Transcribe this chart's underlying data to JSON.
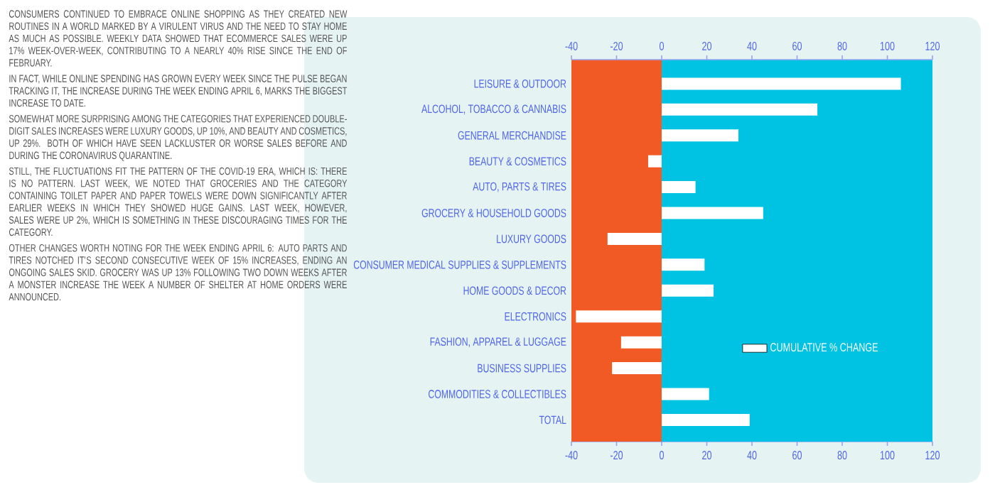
{
  "chart_data": {
    "type": "bar",
    "orientation": "horizontal",
    "categories": [
      "LEISURE & OUTDOOR",
      "ALCOHOL, TOBACCO & CANNABIS",
      "GENERAL MERCHANDISE",
      "BEAUTY & COSMETICS",
      "AUTO, PARTS & TIRES",
      "GROCERY & HOUSEHOLD GOODS",
      "LUXURY GOODS",
      "CONSUMER MEDICAL SUPPLIES & SUPPLEMENTS",
      "HOME GOODS & DECOR",
      "ELECTRONICS",
      "FASHION, APPAREL & LUGGAGE",
      "BUSINESS SUPPLIES",
      "COMMODITIES & COLLECTIBLES",
      "TOTAL"
    ],
    "series": [
      {
        "name": "CUMULATIVE % CHANGE",
        "color": "#ffffff",
        "values": [
          106,
          69,
          34,
          -6,
          15,
          45,
          -24,
          19,
          23,
          -38,
          -18,
          -22,
          21,
          39
        ]
      }
    ],
    "xlim": [
      -40,
      120
    ],
    "xticks": [
      -40,
      -20,
      0,
      20,
      40,
      60,
      80,
      100,
      120
    ],
    "x2lim": [
      -40,
      120
    ],
    "x2ticks": [
      -40,
      -20,
      0,
      20,
      40,
      60,
      80,
      100,
      120
    ],
    "bands": [
      {
        "axis": "x",
        "from": -40,
        "to": 0,
        "color": "#f15a24"
      },
      {
        "axis": "x",
        "from": 0,
        "to": 120,
        "color": "#00c3e3"
      }
    ],
    "legend": "bottom right",
    "annotations": [
      "CONSUMERS CONTINUED TO EMBRACE ONLINE SHOPPING AS THEY CREATED NEW ROUTINES IN A WORLD MARKED BY A VIRULENT VIRUS AND THE NEED TO STAY HOME AS MUCH AS POSSIBLE. WEEKLY DATA SHOWED THAT ECOMMERCE SALES WERE UP 17% WEEK-OVER-WEEK, CONTRIBUTING TO A NEARLY 40% RISE SINCE THE END OF FEBRUARY.",
      "IN FACT, WHILE ONLINE SPENDING HAS GROWN EVERY WEEK SINCE THE PULSE BEGAN TRACKING IT, THE INCREASE DURING THE WEEK ENDING APRIL 6, MARKS THE BIGGEST INCREASE TO DATE.",
      "SOMEWHAT MORE SURPRISING AMONG THE CATEGORIES THAT EXPERIENCED DOUBLE-DIGIT SALES INCREASES WERE LUXURY GOODS, UP 10%, AND BEAUTY AND COSMETICS, UP 29%. BOTH OF WHICH HAVE SEEN LACKLUSTER OR WORSE SALES BEFORE AND DURING THE CORONAVIRUS QUARANTINE.",
      "STILL, THE FLUCTUATIONS FIT THE PATTERN OF THE COVID-19 ERA, WHICH IS: THERE IS NO PATTERN. LAST WEEK, WE NOTED THAT GROCERIES AND THE CATEGORY CONTAINING TOILET PAPER AND PAPER TOWELS WERE DOWN SIGNIFICANTLY AFTER EARLIER WEEKS IN WHICH THEY SHOWED HUGE GAINS. LAST WEEK, HOWEVER, SALES WERE UP 2%, WHICH IS SOMETHING IN THESE DISCOURAGING TIMES FOR THE CATEGORY.",
      "OTHER CHANGES WORTH NOTING FOR THE WEEK ENDING APRIL 6: AUTO PARTS AND TIRES NOTCHED IT'S SECOND CONSECUTIVE WEEK OF 15% INCREASES, ENDING AN ONGOING SALES SKID. GROCERY WAS UP 13% FOLLOWING TWO DOWN WEEKS AFTER A MONSTER INCREASE THE WEEK A NUMBER OF SHELTER AT HOME ORDERS WERE ANNOUNCED."
    ]
  }
}
